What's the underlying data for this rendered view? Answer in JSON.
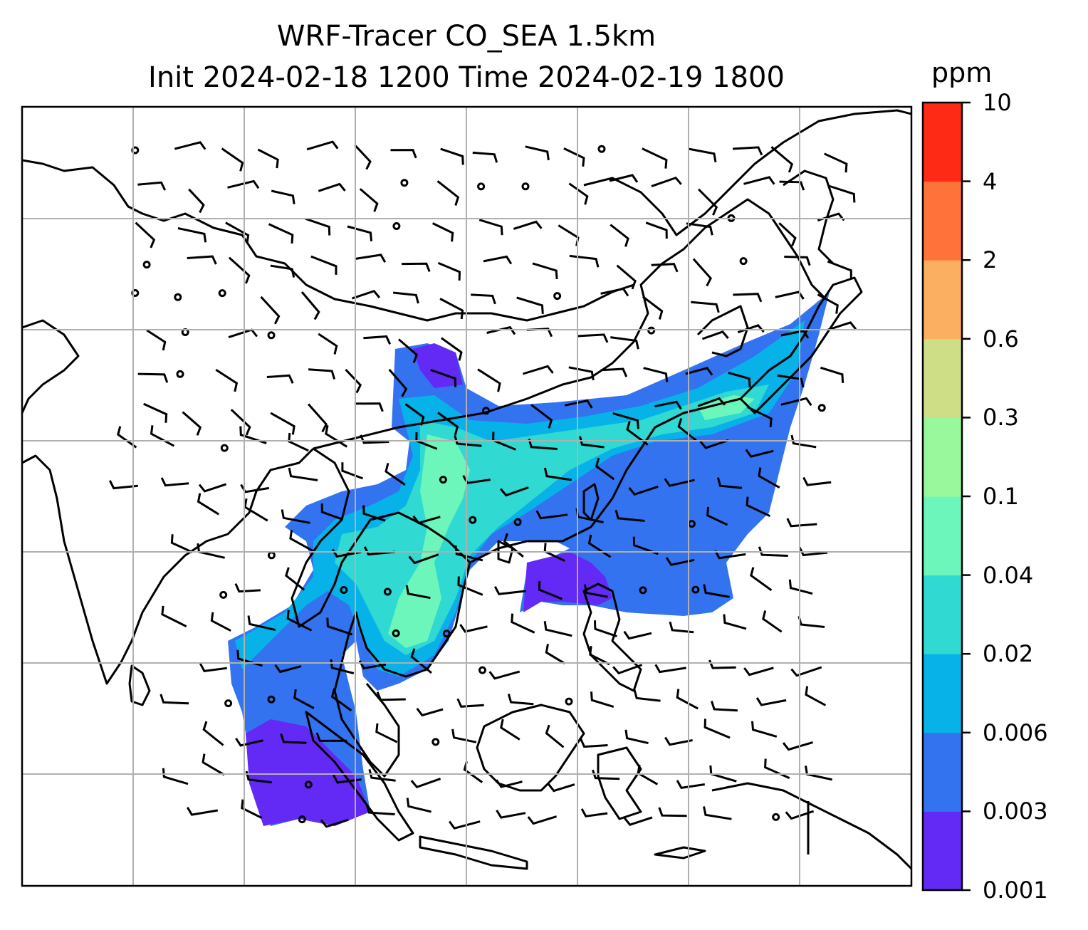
{
  "title": {
    "line1": "WRF-Tracer CO_SEA 1.5km",
    "line2": "Init 2024-02-18 1200 Time 2024-02-19 1800"
  },
  "colorbar": {
    "unit": "ppm",
    "levels": [
      "0.001",
      "0.003",
      "0.006",
      "0.02",
      "0.04",
      "0.1",
      "0.3",
      "0.6",
      "2",
      "4",
      "10"
    ],
    "colors": [
      "#6329f5",
      "#3373f0",
      "#06b2e8",
      "#30d9d1",
      "#6cf6bb",
      "#99f89c",
      "#cede86",
      "#fbaf61",
      "#ff733b",
      "#ff2a16"
    ]
  },
  "map": {
    "grid": true,
    "coastline_color": "#000000",
    "grid_color": "#b0b0b0",
    "wind_barbs": true
  }
}
